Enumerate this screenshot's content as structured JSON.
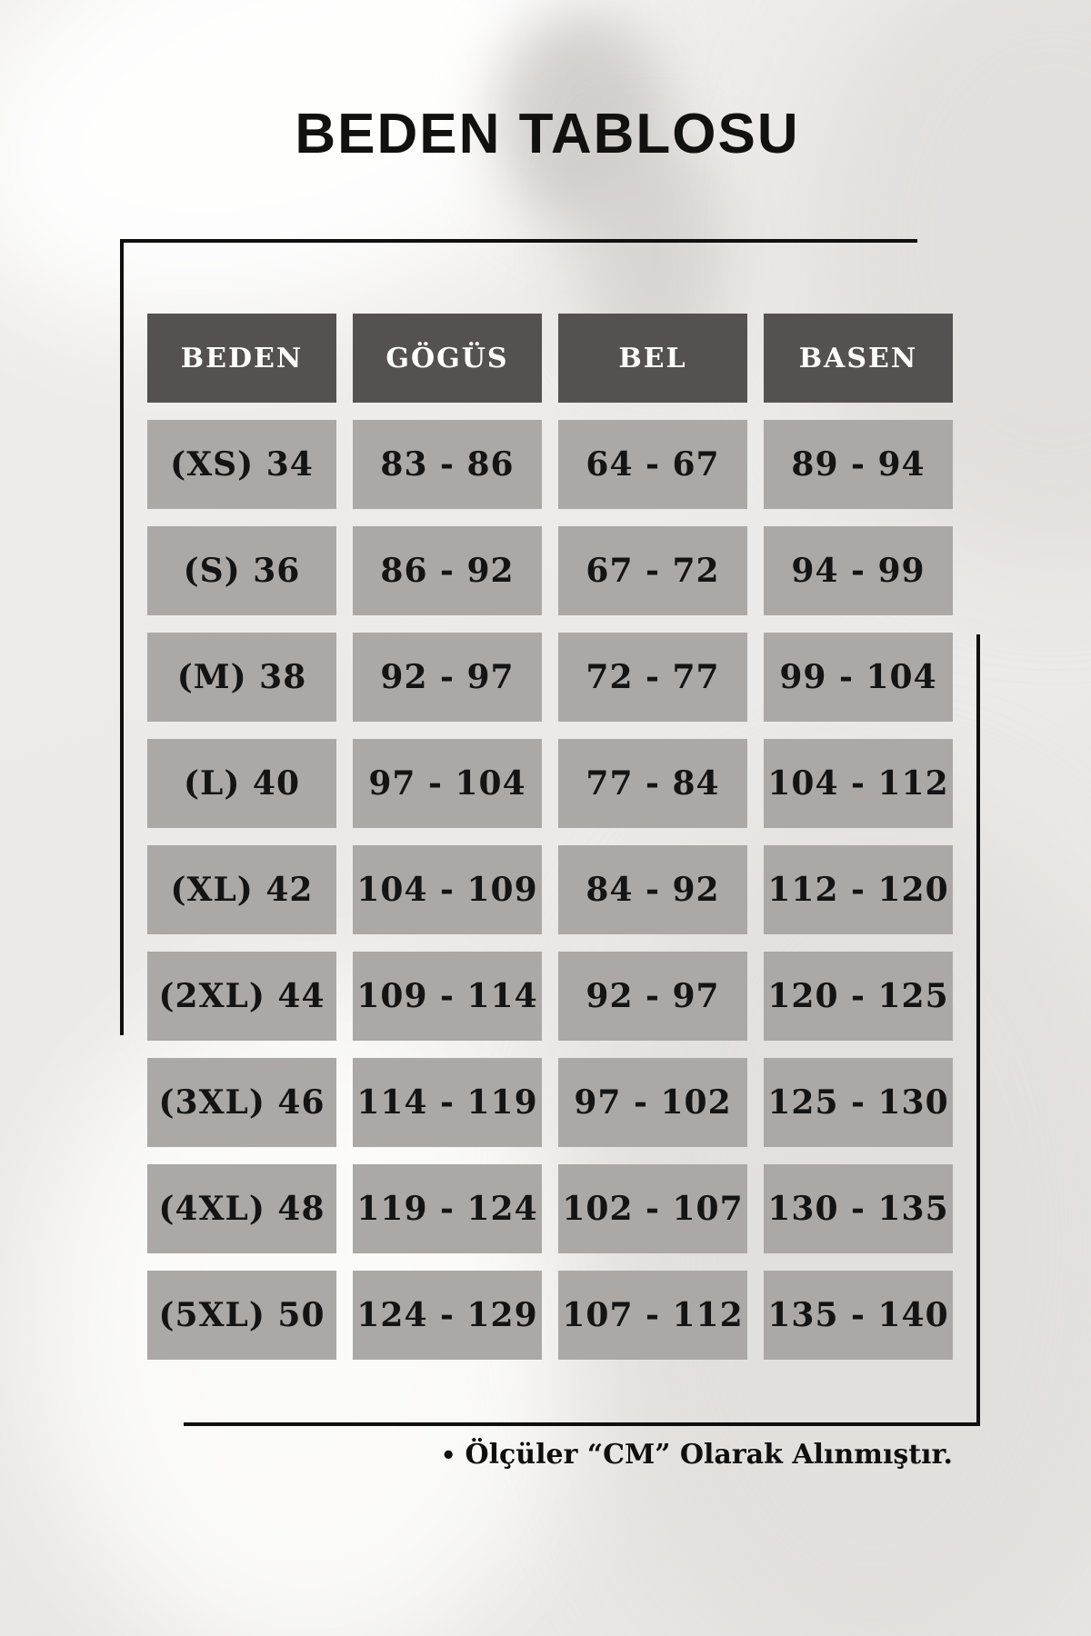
{
  "page": {
    "title": "BEDEN TABLOSU",
    "note_bullet": "•",
    "note_text": "Ölçüler “CM” Olarak Alınmıştır."
  },
  "colors": {
    "page_bg": "#ECEBE9",
    "header_bg": "#555150",
    "header_text": "#FFFFFF",
    "cell_bg": "#ABA8A5",
    "cell_text": "#141414",
    "frame": "#0F0F0F"
  },
  "chart_data": {
    "type": "table",
    "title": "BEDEN TABLOSU",
    "headers": [
      "BEDEN",
      "GÖGÜS",
      "BEL",
      "BASEN"
    ],
    "rows": [
      [
        "(XS) 34",
        "83 - 86",
        "64 - 67",
        "89 - 94"
      ],
      [
        "(S) 36",
        "86 - 92",
        "67 - 72",
        "94 - 99"
      ],
      [
        "(M) 38",
        "92 - 97",
        "72 - 77",
        "99 - 104"
      ],
      [
        "(L) 40",
        "97 - 104",
        "77 - 84",
        "104 - 112"
      ],
      [
        "(XL) 42",
        "104 - 109",
        "84 - 92",
        "112 - 120"
      ],
      [
        "(2XL) 44",
        "109 - 114",
        "92 - 97",
        "120 - 125"
      ],
      [
        "(3XL) 46",
        "114 - 119",
        "97 - 102",
        "125 - 130"
      ],
      [
        "(4XL) 48",
        "119 - 124",
        "102 - 107",
        "130 - 135"
      ],
      [
        "(5XL) 50",
        "124 - 129",
        "107 - 112",
        "135 - 140"
      ]
    ],
    "footnote": "Ölçüler “CM” Olarak Alınmıştır."
  }
}
